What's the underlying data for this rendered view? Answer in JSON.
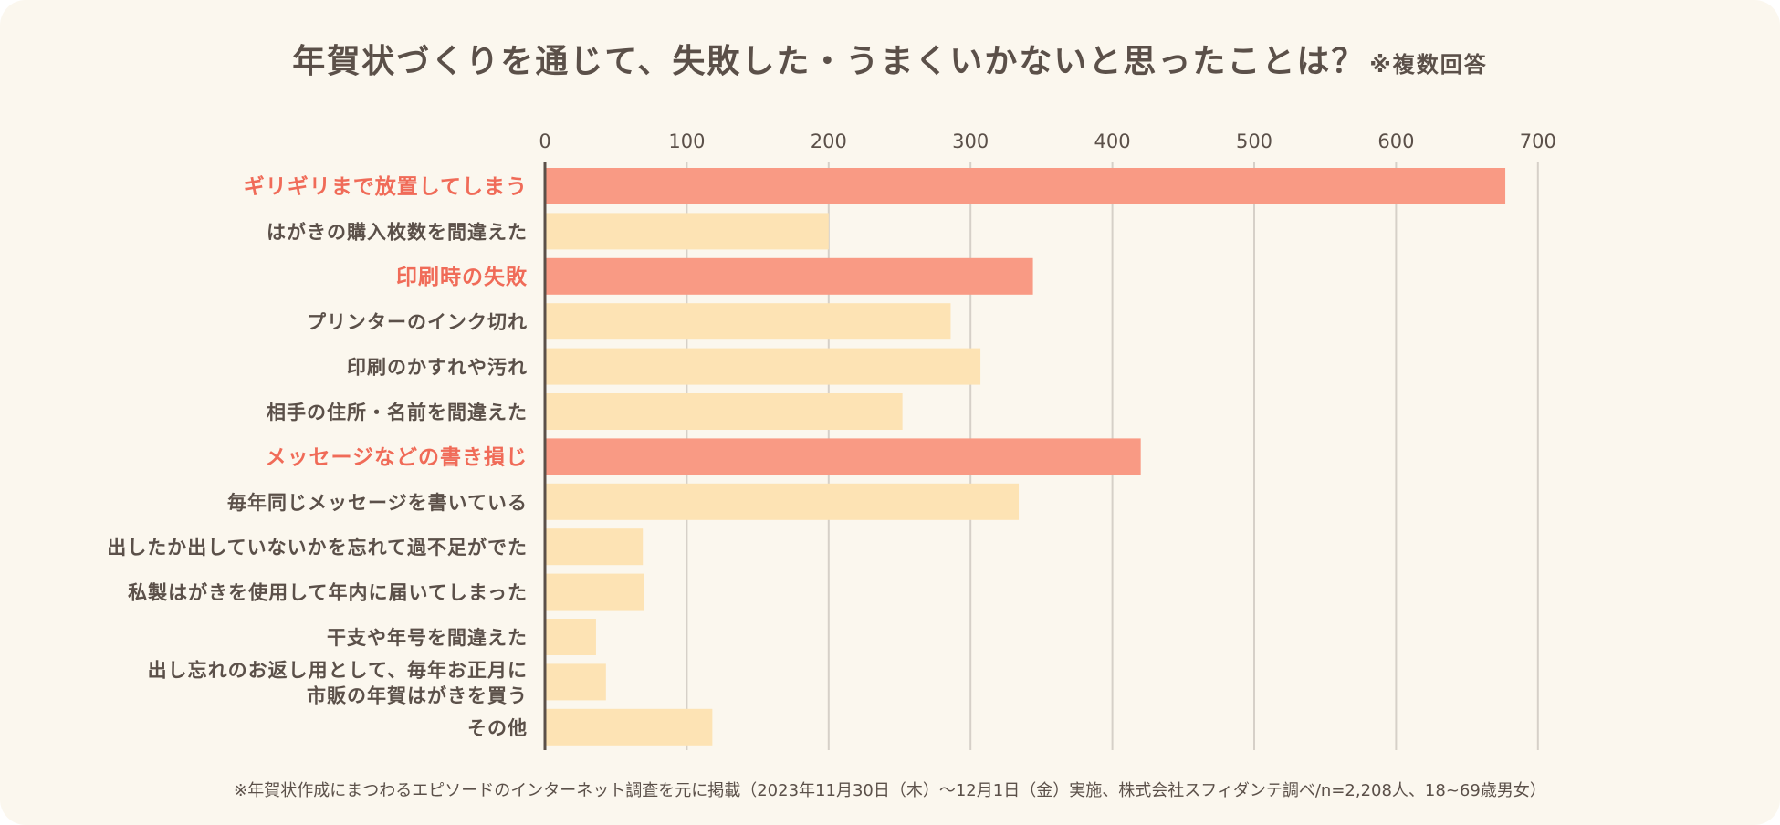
{
  "title": {
    "main": "年賀状づくりを通じて、失敗した・うまくいかないと思ったことは？",
    "note": "※複数回答"
  },
  "footnote": "※年賀状作成にまつわるエピソードのインターネット調査を元に掲載（2023年11月30日（木）～12月1日（金）実施、株式会社スフィダンテ調べ/n=2,208人、18~69歳男女）",
  "colors": {
    "background": "#fbf7ee",
    "highlight_bar": "#f99a84",
    "normal_bar": "#fde3b4",
    "highlight_text": "#f06b58",
    "text": "#5b5049",
    "grid": "#d6d0c8",
    "axis": "#5b5049"
  },
  "chart_data": {
    "type": "bar",
    "orientation": "horizontal",
    "title": "年賀状づくりを通じて、失敗した・うまくいかないと思ったことは？",
    "xlabel": "",
    "ylabel": "",
    "xlim": [
      0,
      700
    ],
    "ticks": [
      0,
      100,
      200,
      300,
      400,
      500,
      600,
      700
    ],
    "grid": true,
    "axis_position": "top",
    "categories": [
      [
        "ギリギリまで放置してしまう"
      ],
      [
        "はがきの購入枚数を間違えた"
      ],
      [
        "印刷時の失敗"
      ],
      [
        "プリンターのインク切れ"
      ],
      [
        "印刷のかすれや汚れ"
      ],
      [
        "相手の住所・名前を間違えた"
      ],
      [
        "メッセージなどの書き損じ"
      ],
      [
        "毎年同じメッセージを書いている"
      ],
      [
        "出したか出していないかを忘れて過不足がでた"
      ],
      [
        "私製はがきを使用して年内に届いてしまった"
      ],
      [
        "干支や年号を間違えた"
      ],
      [
        "出し忘れのお返し用として、毎年お正月に",
        "市販の年賀はがきを買う"
      ],
      [
        "その他"
      ]
    ],
    "values": [
      677,
      200,
      344,
      286,
      307,
      252,
      420,
      334,
      69,
      70,
      36,
      43,
      118
    ],
    "highlighted": [
      true,
      false,
      true,
      false,
      false,
      false,
      true,
      false,
      false,
      false,
      false,
      false,
      false
    ]
  }
}
